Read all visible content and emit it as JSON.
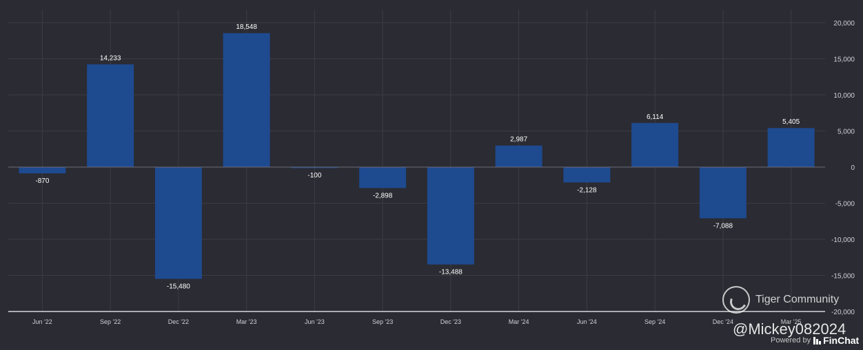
{
  "chart_data": {
    "type": "bar",
    "categories": [
      "Jun '22",
      "Sep '22",
      "Dec '22",
      "Mar '23",
      "Jun '23",
      "Sep '23",
      "Dec '23",
      "Mar '24",
      "Jun '24",
      "Sep '24",
      "Dec '24",
      "Mar '25"
    ],
    "values": [
      -870,
      14233,
      -15480,
      18548,
      -100,
      -2898,
      -13488,
      2987,
      -2128,
      6114,
      -7088,
      5405
    ],
    "value_labels": [
      "-870",
      "14,233",
      "-15,480",
      "18,548",
      "-100",
      "-2,898",
      "-13,488",
      "2,987",
      "-2,128",
      "6,114",
      "-7,088",
      "5,405"
    ],
    "ylim": [
      -20000,
      20000
    ],
    "yticks": [
      20000,
      15000,
      10000,
      5000,
      0,
      -5000,
      -10000,
      -15000,
      -20000
    ],
    "ytick_labels": [
      "20,000",
      "15,000",
      "10,000",
      "5,000",
      "0",
      "-5,000",
      "-10,000",
      "-15,000",
      "-20,000"
    ],
    "y_axis_side": "right",
    "grid": true,
    "bar_color": "#1e4a8f",
    "label_color": "#ffffff",
    "tick_color": "#d0d0d6",
    "grid_color": "#3c3c45"
  },
  "watermark": {
    "community": "Tiger Community",
    "handle": "@Mickey082024",
    "powered_by": "Powered by",
    "brand": "FinChat"
  }
}
